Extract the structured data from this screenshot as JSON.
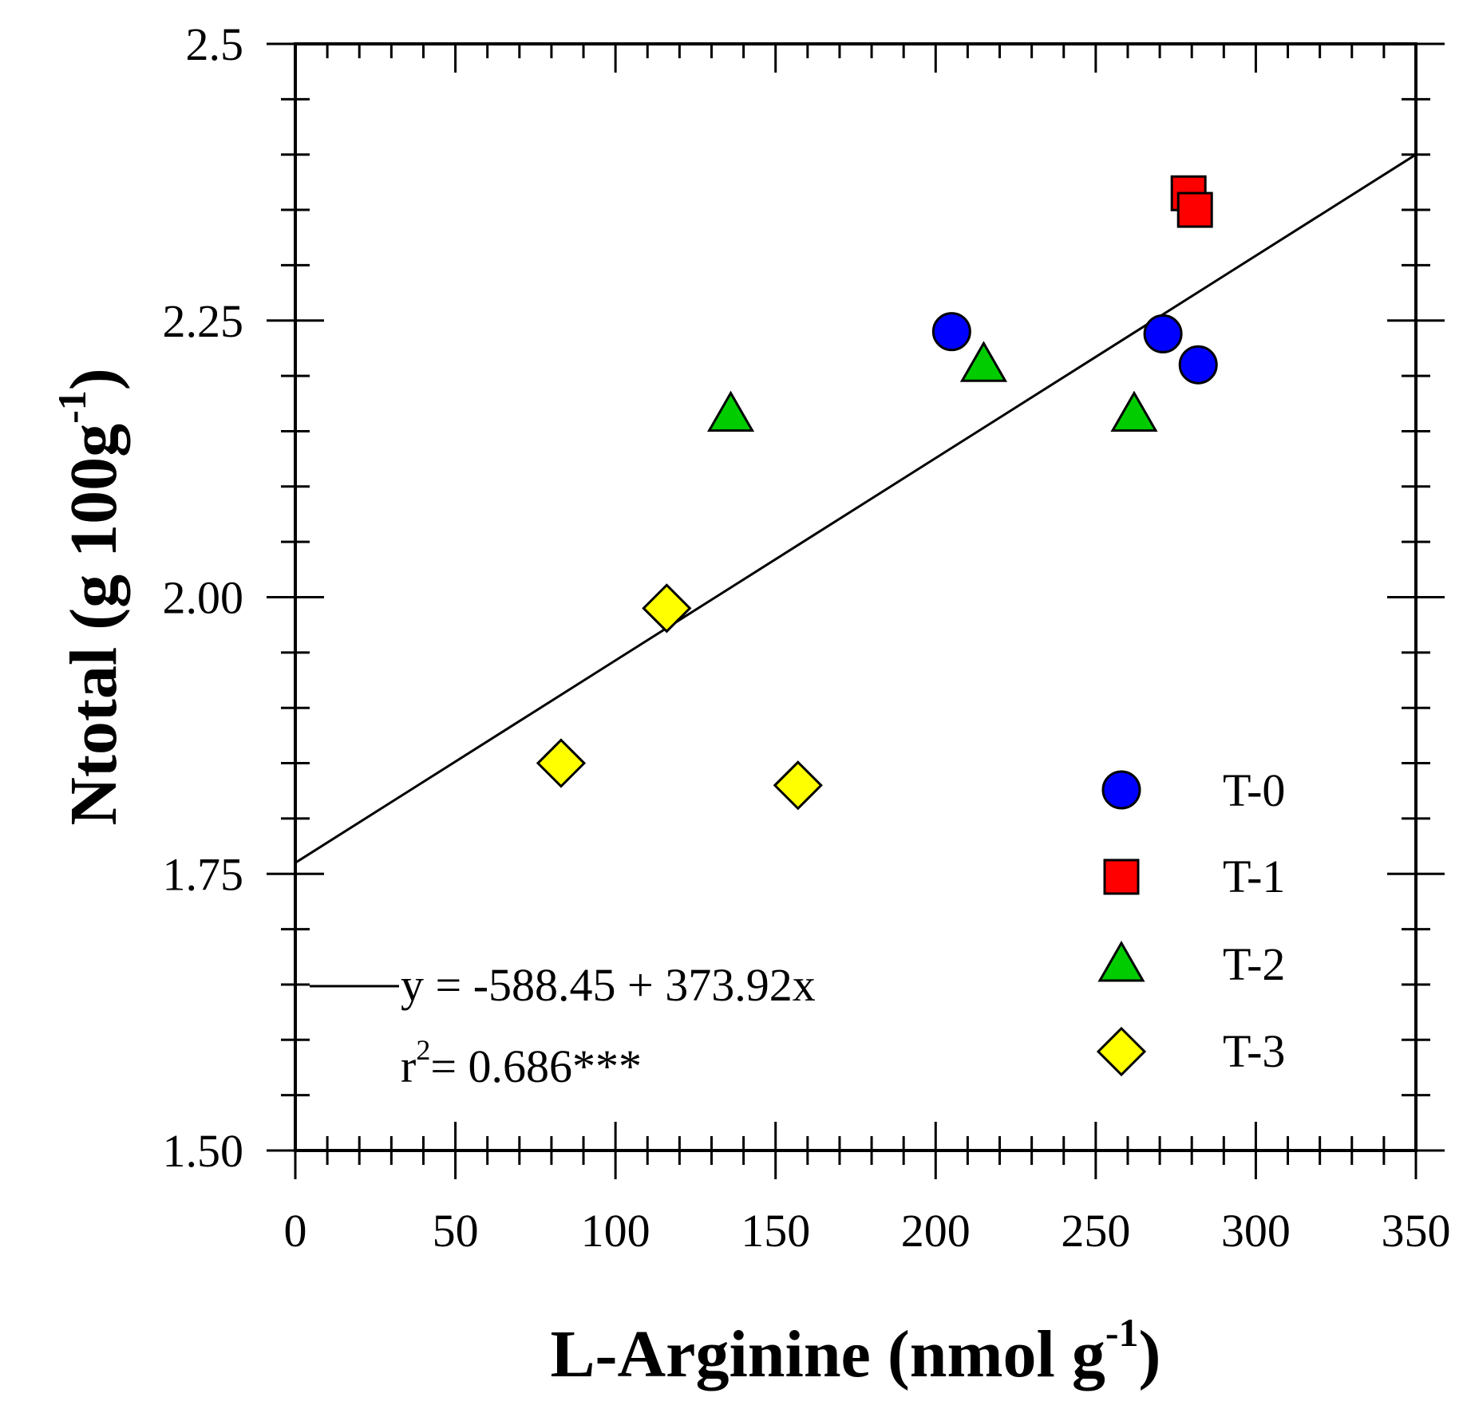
{
  "chart_data": {
    "type": "scatter",
    "xlabel": "L-Arginine (nmol g-1)",
    "xlabel_main": "L-Arginine (nmol g",
    "xlabel_sup": "-1",
    "xlabel_end": ")",
    "ylabel": "Ntotal (g 100g-1)",
    "ylabel_main": "Ntotal (g 100g",
    "ylabel_sup": "-1",
    "ylabel_end": ")",
    "xlim": [
      0,
      350
    ],
    "ylim": [
      1.5,
      2.5
    ],
    "x_ticks": [
      0,
      50,
      100,
      150,
      200,
      250,
      300,
      350
    ],
    "x_tick_labels": [
      "0",
      "50",
      "100",
      "150",
      "200",
      "250",
      "300",
      "350"
    ],
    "y_ticks": [
      1.5,
      1.75,
      2.0,
      2.25,
      2.5
    ],
    "y_tick_labels": [
      "1.50",
      "1.75",
      "2.00",
      "2.25",
      "2.5"
    ],
    "grid": false,
    "legend_position": "lower-right",
    "series": [
      {
        "name": "T-0",
        "marker": "circle",
        "color": "#0000ff",
        "x": [
          205,
          271,
          282
        ],
        "y": [
          2.24,
          2.238,
          2.21
        ]
      },
      {
        "name": "T-1",
        "marker": "square",
        "color": "#ff0000",
        "x": [
          279,
          281
        ],
        "y": [
          2.365,
          2.35
        ]
      },
      {
        "name": "T-2",
        "marker": "triangle",
        "color": "#00cc00",
        "x": [
          136,
          215,
          262
        ],
        "y": [
          2.165,
          2.21,
          2.165
        ]
      },
      {
        "name": "T-3",
        "marker": "diamond",
        "color": "#ffff00",
        "x": [
          83,
          116,
          157
        ],
        "y": [
          1.85,
          1.99,
          1.83
        ]
      }
    ],
    "fit_line": {
      "x": [
        0,
        350
      ],
      "y": [
        1.76,
        2.4
      ]
    },
    "annotation": {
      "equation": "y = -588.45 + 373.92x",
      "r2_prefix": "r",
      "r2_sup": "2",
      "r2_value": "= 0.686***"
    }
  }
}
